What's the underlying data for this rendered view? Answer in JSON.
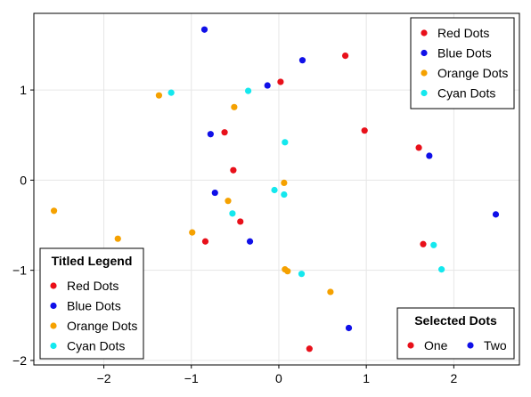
{
  "chart_data": {
    "type": "scatter",
    "title": "",
    "xlabel": "",
    "ylabel": "",
    "xlim": [
      -2.8,
      2.75
    ],
    "ylim": [
      -2.05,
      1.85
    ],
    "grid": true,
    "xticks": [
      -2,
      -1,
      0,
      1,
      2
    ],
    "yticks": [
      -2,
      -1,
      0,
      1
    ],
    "xtick_labels": [
      "−2",
      "−1",
      "0",
      "1",
      "2"
    ],
    "ytick_labels": [
      "−2",
      "−1",
      "0",
      "1"
    ],
    "series": [
      {
        "name": "Red Dots",
        "color": "#e8101a",
        "points": [
          [
            0.76,
            1.38
          ],
          [
            0.02,
            1.09
          ],
          [
            0.98,
            0.55
          ],
          [
            -0.62,
            0.53
          ],
          [
            1.6,
            0.36
          ],
          [
            -0.52,
            0.11
          ],
          [
            -0.44,
            -0.46
          ],
          [
            -0.84,
            -0.68
          ],
          [
            1.65,
            -0.71
          ],
          [
            0.35,
            -1.87
          ]
        ]
      },
      {
        "name": "Blue Dots",
        "color": "#1010e8",
        "points": [
          [
            -0.85,
            1.67
          ],
          [
            0.27,
            1.33
          ],
          [
            -0.13,
            1.05
          ],
          [
            -0.78,
            0.51
          ],
          [
            1.72,
            0.27
          ],
          [
            -0.73,
            -0.14
          ],
          [
            -0.33,
            -0.68
          ],
          [
            2.48,
            -0.38
          ],
          [
            0.8,
            -1.64
          ]
        ]
      },
      {
        "name": "Orange Dots",
        "color": "#f5a100",
        "points": [
          [
            -1.37,
            0.94
          ],
          [
            -0.51,
            0.81
          ],
          [
            0.06,
            -0.03
          ],
          [
            -0.58,
            -0.23
          ],
          [
            -2.57,
            -0.34
          ],
          [
            -0.99,
            -0.58
          ],
          [
            -1.84,
            -0.65
          ],
          [
            0.07,
            -0.99
          ],
          [
            0.1,
            -1.01
          ],
          [
            0.59,
            -1.24
          ]
        ]
      },
      {
        "name": "Cyan Dots",
        "color": "#14e8ee",
        "points": [
          [
            -1.23,
            0.97
          ],
          [
            -0.35,
            0.99
          ],
          [
            0.07,
            0.42
          ],
          [
            -0.05,
            -0.11
          ],
          [
            0.06,
            -0.16
          ],
          [
            -0.53,
            -0.37
          ],
          [
            1.77,
            -0.72
          ],
          [
            1.86,
            -0.99
          ],
          [
            0.26,
            -1.04
          ]
        ]
      }
    ],
    "legends": [
      {
        "title": "",
        "position": "top-right",
        "entries": [
          {
            "label": "Red Dots",
            "color": "#e8101a"
          },
          {
            "label": "Blue Dots",
            "color": "#1010e8"
          },
          {
            "label": "Orange Dots",
            "color": "#f5a100"
          },
          {
            "label": "Cyan Dots",
            "color": "#14e8ee"
          }
        ]
      },
      {
        "title": "Titled Legend",
        "position": "bottom-left",
        "entries": [
          {
            "label": "Red Dots",
            "color": "#e8101a"
          },
          {
            "label": "Blue Dots",
            "color": "#1010e8"
          },
          {
            "label": "Orange Dots",
            "color": "#f5a100"
          },
          {
            "label": "Cyan Dots",
            "color": "#14e8ee"
          }
        ]
      },
      {
        "title": "Selected Dots",
        "position": "bottom-right",
        "orientation": "horizontal",
        "entries": [
          {
            "label": "One",
            "color": "#e8101a"
          },
          {
            "label": "Two",
            "color": "#1010e8"
          }
        ]
      }
    ]
  }
}
